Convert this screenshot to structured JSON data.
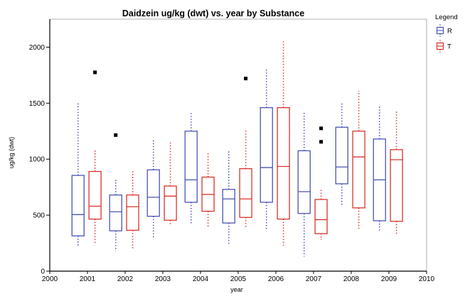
{
  "chart_data": {
    "type": "box",
    "title": "Daidzein ug/kg (dwt) vs. year by Substance",
    "xlabel": "year",
    "ylabel": "ug/kg (dwt)",
    "xlim": [
      2000,
      2010
    ],
    "ylim": [
      0,
      2250
    ],
    "xticks": [
      "2000",
      "2001",
      "2002",
      "2003",
      "2004",
      "2005",
      "2006",
      "2007",
      "2008",
      "2009",
      "2010"
    ],
    "yticks": [
      "0",
      "500",
      "1000",
      "1500",
      "2000"
    ],
    "legend": {
      "title": "Legend",
      "position": "top-right",
      "entries": [
        "R",
        "T"
      ]
    },
    "series": [
      {
        "name": "R",
        "color": "#4a55b5",
        "boxes": [
          {
            "x": 2000.75,
            "whisker_low": 220,
            "q1": 315,
            "median": 505,
            "q3": 855,
            "whisker_high": 1505,
            "outliers": []
          },
          {
            "x": 2001.75,
            "whisker_low": 180,
            "q1": 360,
            "median": 530,
            "q3": 680,
            "whisker_high": 815,
            "outliers": [
              1215
            ]
          },
          {
            "x": 2002.75,
            "whisker_low": 300,
            "q1": 490,
            "median": 660,
            "q3": 905,
            "whisker_high": 1170,
            "outliers": []
          },
          {
            "x": 2003.75,
            "whisker_low": 420,
            "q1": 615,
            "median": 815,
            "q3": 1250,
            "whisker_high": 1420,
            "outliers": []
          },
          {
            "x": 2004.75,
            "whisker_low": 245,
            "q1": 430,
            "median": 645,
            "q3": 730,
            "whisker_high": 1080,
            "outliers": []
          },
          {
            "x": 2005.75,
            "whisker_low": 360,
            "q1": 615,
            "median": 925,
            "q3": 1460,
            "whisker_high": 1810,
            "outliers": []
          },
          {
            "x": 2006.75,
            "whisker_low": 130,
            "q1": 515,
            "median": 710,
            "q3": 1075,
            "whisker_high": 1430,
            "outliers": []
          },
          {
            "x": 2007.75,
            "whisker_low": 590,
            "q1": 780,
            "median": 930,
            "q3": 1285,
            "whisker_high": 1510,
            "outliers": []
          },
          {
            "x": 2008.75,
            "whisker_low": 350,
            "q1": 450,
            "median": 815,
            "q3": 1180,
            "whisker_high": 1480,
            "outliers": []
          }
        ]
      },
      {
        "name": "T",
        "color": "#d9342b",
        "boxes": [
          {
            "x": 2001.2,
            "whisker_low": 240,
            "q1": 465,
            "median": 580,
            "q3": 890,
            "whisker_high": 1080,
            "outliers": [
              1775
            ]
          },
          {
            "x": 2002.2,
            "whisker_low": 190,
            "q1": 365,
            "median": 575,
            "q3": 680,
            "whisker_high": 900,
            "outliers": []
          },
          {
            "x": 2003.2,
            "whisker_low": 405,
            "q1": 455,
            "median": 670,
            "q3": 760,
            "whisker_high": 1150,
            "outliers": []
          },
          {
            "x": 2004.2,
            "whisker_low": 395,
            "q1": 535,
            "median": 685,
            "q3": 840,
            "whisker_high": 1060,
            "outliers": []
          },
          {
            "x": 2005.2,
            "whisker_low": 385,
            "q1": 480,
            "median": 645,
            "q3": 915,
            "whisker_high": 1270,
            "outliers": [
              1720
            ]
          },
          {
            "x": 2006.2,
            "whisker_low": 230,
            "q1": 465,
            "median": 935,
            "q3": 1460,
            "whisker_high": 2060,
            "outliers": []
          },
          {
            "x": 2007.2,
            "whisker_low": 280,
            "q1": 335,
            "median": 460,
            "q3": 640,
            "whisker_high": 740,
            "outliers": [
              1275,
              1155
            ]
          },
          {
            "x": 2008.2,
            "whisker_low": 370,
            "q1": 565,
            "median": 1020,
            "q3": 1250,
            "whisker_high": 1610,
            "outliers": []
          },
          {
            "x": 2009.2,
            "whisker_low": 335,
            "q1": 445,
            "median": 995,
            "q3": 1085,
            "whisker_high": 1440,
            "outliers": []
          }
        ]
      }
    ]
  }
}
